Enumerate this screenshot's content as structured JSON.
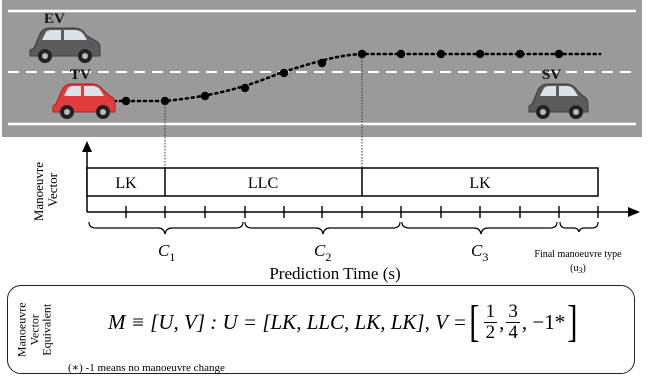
{
  "road": {
    "vehicles": [
      {
        "id": "ev",
        "label": "EV",
        "color": "#5f5f5f"
      },
      {
        "id": "tv",
        "label": "TV",
        "color": "#e03c3c"
      },
      {
        "id": "sv",
        "label": "SV",
        "color": "#5f5f5f"
      }
    ]
  },
  "diagram": {
    "y_axis_label": "Manoeuvre\nVector",
    "segments": [
      {
        "id": "lk1",
        "label": "LK"
      },
      {
        "id": "llc",
        "label": "LLC"
      },
      {
        "id": "lk2",
        "label": "LK"
      }
    ],
    "braces": [
      {
        "id": "c1",
        "label": "C",
        "sub": "1"
      },
      {
        "id": "c2",
        "label": "C",
        "sub": "2"
      },
      {
        "id": "c3",
        "label": "C",
        "sub": "3"
      }
    ],
    "final_label_line1": "Final manoeuvre type",
    "final_label_line2": "(u",
    "final_label_sub": "3",
    "final_label_close": ")",
    "x_axis_label": "Prediction Time (s)"
  },
  "equation": {
    "side_label": "Manoeuvre\nVector\nEquivalent",
    "lhs": "M ≡ [U, V] : U = [LK, LLC, LK, LK], V = ",
    "fractions": [
      {
        "num": "1",
        "den": "2"
      },
      {
        "num": "3",
        "den": "4"
      }
    ],
    "last_value": "−1*",
    "note": "(∗) -1 means no manoeuvre change"
  }
}
